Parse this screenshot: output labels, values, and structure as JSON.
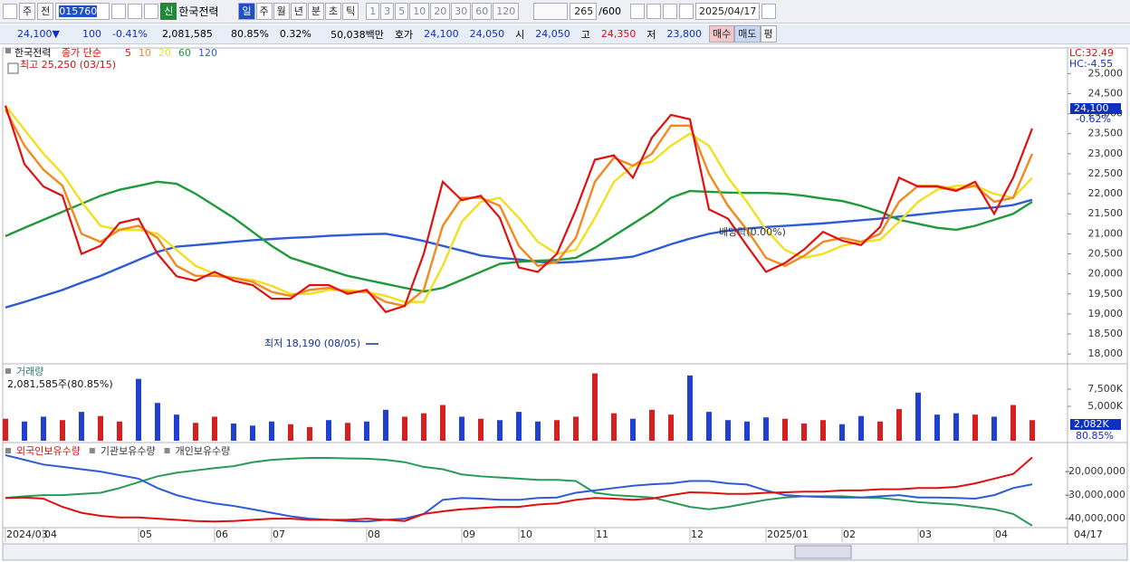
{
  "toolbar": {
    "period": "주",
    "compare": "전",
    "code": "015760",
    "name_badge": "신",
    "name": "한국전력",
    "periods": [
      "일",
      "주",
      "월",
      "년",
      "분",
      "초",
      "틱"
    ],
    "intervals": [
      "1",
      "3",
      "5",
      "10",
      "20",
      "30",
      "60",
      "120"
    ],
    "count": "265",
    "count_max": "/600",
    "date": "2025/04/17"
  },
  "quote": {
    "price": "24,100",
    "arrow": "▼",
    "change": "100",
    "change_rate": "-0.41%",
    "volume": "2,081,585",
    "volume_rate": "80.85%",
    "turnover": "0.32%",
    "amount": "50,038백만",
    "bid_label": "호가",
    "ask": "24,100",
    "bid": "24,050",
    "open_label": "시",
    "open": "24,050",
    "high_label": "고",
    "high": "24,350",
    "low_label": "저",
    "low": "23,800",
    "buy": "매수",
    "sell": "매도",
    "avg": "평"
  },
  "chart_data": [
    {
      "type": "line",
      "title": "한국전력",
      "subtitle": "종가 단순",
      "high_note": "최고 25,250 (03/15)",
      "low_note": "최저 18,190 (08/05)",
      "dividend_note": "배당락(0.00%)",
      "lc": "LC:32.49",
      "hc": "HC:-4.55",
      "last_price": "24,100",
      "last_change": "-0.62%",
      "x_end_label": "04/17",
      "categories": [
        "2024/03",
        null,
        "04",
        null,
        null,
        null,
        null,
        "05",
        null,
        null,
        null,
        "06",
        null,
        null,
        "07",
        null,
        null,
        null,
        null,
        "08",
        null,
        null,
        null,
        null,
        "09",
        null,
        null,
        "10",
        null,
        null,
        null,
        "11",
        null,
        null,
        null,
        null,
        "12",
        null,
        null,
        null,
        "2025/01",
        null,
        null,
        null,
        "02",
        null,
        null,
        null,
        "03",
        null,
        null,
        null,
        "04",
        null,
        null
      ],
      "ylim": [
        17800,
        25550
      ],
      "yticks": [
        {
          "value": 18000,
          "label": "18,000"
        },
        {
          "value": 18500,
          "label": "18,500"
        },
        {
          "value": 19000,
          "label": "19,000"
        },
        {
          "value": 19500,
          "label": "19,500"
        },
        {
          "value": 20000,
          "label": "20,000"
        },
        {
          "value": 20500,
          "label": "20,500"
        },
        {
          "value": 21000,
          "label": "21,000"
        },
        {
          "value": 21500,
          "label": "21,500"
        },
        {
          "value": 22000,
          "label": "22,000"
        },
        {
          "value": 22500,
          "label": "22,500"
        },
        {
          "value": 23000,
          "label": "23,000"
        },
        {
          "value": 23500,
          "label": "23,500"
        },
        {
          "value": 24000,
          "label": "24,000"
        },
        {
          "value": 24500,
          "label": "24,500"
        },
        {
          "value": 25000,
          "label": "25,000"
        }
      ],
      "series": [
        {
          "name": "5",
          "color": "#e01010",
          "values": [
            24200,
            22740,
            22180,
            21950,
            20500,
            20700,
            21270,
            21380,
            20500,
            19940,
            19830,
            20050,
            19830,
            19720,
            19380,
            19380,
            19720,
            19720,
            19500,
            19600,
            19050,
            19200,
            20500,
            22300,
            21840,
            21950,
            21400,
            20160,
            20050,
            20500,
            21600,
            22850,
            22960,
            22400,
            23400,
            23970,
            23860,
            21610,
            21380,
            20700,
            20050,
            20270,
            20610,
            21050,
            20830,
            20720,
            21170,
            22400,
            22180,
            22180,
            22070,
            22300,
            21500,
            22400,
            23630
          ]
        },
        {
          "name": "10",
          "color": "#f08a1c",
          "values": [
            24100,
            23200,
            22600,
            22200,
            21000,
            20800,
            21100,
            21200,
            20900,
            20200,
            19950,
            19950,
            19900,
            19800,
            19550,
            19450,
            19600,
            19650,
            19550,
            19550,
            19300,
            19200,
            19600,
            21200,
            21900,
            21900,
            21700,
            20700,
            20200,
            20300,
            20900,
            22300,
            22900,
            22700,
            23000,
            23700,
            23700,
            22500,
            21700,
            21100,
            20400,
            20200,
            20450,
            20800,
            20900,
            20800,
            21000,
            21800,
            22200,
            22200,
            22100,
            22200,
            21800,
            21900,
            23000
          ]
        },
        {
          "name": "20",
          "color": "#f0e020",
          "values": [
            24200,
            23600,
            23000,
            22500,
            21800,
            21200,
            21100,
            21100,
            21000,
            20600,
            20200,
            20000,
            19900,
            19850,
            19700,
            19500,
            19500,
            19600,
            19600,
            19550,
            19450,
            19300,
            19300,
            20200,
            21300,
            21800,
            21900,
            21400,
            20800,
            20500,
            20600,
            21400,
            22300,
            22700,
            22800,
            23200,
            23500,
            23200,
            22400,
            21800,
            21100,
            20600,
            20400,
            20500,
            20700,
            20800,
            20850,
            21300,
            21800,
            22100,
            22200,
            22200,
            22000,
            21900,
            22400
          ]
        },
        {
          "name": "60",
          "color": "#1f9a3a",
          "values": [
            20940,
            21150,
            21350,
            21550,
            21750,
            21950,
            22100,
            22200,
            22300,
            22250,
            22000,
            21700,
            21400,
            21050,
            20700,
            20400,
            20250,
            20100,
            19950,
            19850,
            19750,
            19650,
            19560,
            19650,
            19850,
            20050,
            20250,
            20300,
            20330,
            20350,
            20400,
            20650,
            20950,
            21250,
            21550,
            21900,
            22070,
            22050,
            22030,
            22020,
            22020,
            22000,
            21950,
            21880,
            21820,
            21700,
            21550,
            21350,
            21250,
            21150,
            21100,
            21200,
            21350,
            21500,
            21800
          ]
        },
        {
          "name": "120",
          "color": "#2e5bd8",
          "values": [
            19160,
            19300,
            19450,
            19600,
            19780,
            19950,
            20150,
            20350,
            20550,
            20680,
            20720,
            20760,
            20800,
            20840,
            20870,
            20900,
            20920,
            20950,
            20970,
            20990,
            21000,
            20920,
            20820,
            20700,
            20580,
            20460,
            20400,
            20360,
            20300,
            20280,
            20300,
            20340,
            20380,
            20430,
            20580,
            20740,
            20880,
            21000,
            21080,
            21130,
            21170,
            21200,
            21230,
            21260,
            21300,
            21340,
            21380,
            21430,
            21480,
            21530,
            21580,
            21620,
            21660,
            21720,
            21850
          ]
        }
      ]
    },
    {
      "type": "bar",
      "title": "거래량",
      "subtitle": "2,081,585주(80.85%)",
      "last_label": "2,082K",
      "last_rate": "80.85%",
      "ylim": [
        0,
        10800
      ],
      "yticks": [
        {
          "value": 5000,
          "label": "5,000K"
        },
        {
          "value": 7500,
          "label": "7,500K"
        }
      ],
      "values": [
        3200,
        2800,
        3500,
        3000,
        4200,
        3600,
        2800,
        9000,
        5500,
        3800,
        2600,
        3500,
        2500,
        2200,
        2800,
        2400,
        2000,
        3000,
        2600,
        2800,
        4500,
        3500,
        4000,
        5200,
        3500,
        3200,
        3000,
        4200,
        2800,
        3000,
        3500,
        9800,
        4000,
        3200,
        4500,
        3800,
        9500,
        4200,
        3000,
        2800,
        3400,
        3200,
        2500,
        3000,
        2400,
        3600,
        2800,
        4600,
        7000,
        3800,
        4000,
        3800,
        3500,
        5200,
        3000
      ],
      "colors": [
        "#d62020",
        "#2040d0",
        "#2040d0",
        "#d62020",
        "#2040d0",
        "#d62020",
        "#d62020",
        "#2040d0",
        "#2040d0",
        "#2040d0",
        "#d62020",
        "#d62020",
        "#2040d0",
        "#2040d0",
        "#2040d0",
        "#d62020",
        "#d62020",
        "#2040d0",
        "#d62020",
        "#2040d0",
        "#2040d0",
        "#d62020",
        "#d62020",
        "#d62020",
        "#2040d0",
        "#d62020",
        "#2040d0",
        "#2040d0",
        "#2040d0",
        "#d62020",
        "#d62020",
        "#d62020",
        "#d62020",
        "#2040d0",
        "#d62020",
        "#d62020",
        "#2040d0",
        "#2040d0",
        "#2040d0",
        "#2040d0",
        "#2040d0",
        "#d62020",
        "#d62020",
        "#d62020",
        "#2040d0",
        "#2040d0",
        "#d62020",
        "#d62020",
        "#2040d0",
        "#2040d0",
        "#2040d0",
        "#d62020",
        "#2040d0",
        "#d62020",
        "#d62020"
      ]
    },
    {
      "type": "line",
      "ylim": [
        -46500000,
        -8800000
      ],
      "yticks": [
        {
          "value": -20000000,
          "label": "-20,000,000"
        },
        {
          "value": -30000000,
          "label": "-30,000,000"
        },
        {
          "value": -40000000,
          "label": "-40,000,000"
        }
      ],
      "series": [
        {
          "name": "외국인보유수량",
          "color": "#e01010",
          "values": [
            -31200000,
            -31000000,
            -31500000,
            -35000000,
            -37500000,
            -38800000,
            -39500000,
            -39500000,
            -40000000,
            -40500000,
            -41000000,
            -41200000,
            -41000000,
            -40500000,
            -40000000,
            -40000000,
            -40500000,
            -40500000,
            -40500000,
            -40000000,
            -40500000,
            -41000000,
            -38000000,
            -36900000,
            -36000000,
            -35500000,
            -35000000,
            -35000000,
            -34000000,
            -33500000,
            -32000000,
            -31200000,
            -31500000,
            -32000000,
            -31500000,
            -30000000,
            -28800000,
            -29000000,
            -29500000,
            -29500000,
            -29000000,
            -28800000,
            -28500000,
            -28500000,
            -28000000,
            -28000000,
            -27500000,
            -27500000,
            -27000000,
            -27000000,
            -26500000,
            -25000000,
            -23000000,
            -21000000,
            -14000000
          ]
        },
        {
          "name": "기관보유수량",
          "color": "#2e5bd8",
          "values": [
            -13000000,
            -15000000,
            -17000000,
            -18000000,
            -19000000,
            -20000000,
            -21500000,
            -23000000,
            -27000000,
            -30000000,
            -32000000,
            -33500000,
            -34600000,
            -36000000,
            -37500000,
            -39000000,
            -40000000,
            -40500000,
            -41000000,
            -41200000,
            -40500000,
            -40000000,
            -38000000,
            -32000000,
            -31200000,
            -31500000,
            -32000000,
            -32000000,
            -31200000,
            -31000000,
            -29000000,
            -28000000,
            -27000000,
            -26000000,
            -25400000,
            -25000000,
            -24000000,
            -24000000,
            -25000000,
            -25500000,
            -28000000,
            -30000000,
            -30500000,
            -30800000,
            -31000000,
            -31000000,
            -30500000,
            -30000000,
            -31000000,
            -31000000,
            -31200000,
            -31500000,
            -30000000,
            -27000000,
            -25400000
          ]
        },
        {
          "name": "개인보유수량",
          "color": "#2a9a5a",
          "values": [
            -31200000,
            -30500000,
            -30000000,
            -30000000,
            -29500000,
            -29000000,
            -27000000,
            -24500000,
            -22000000,
            -20500000,
            -19500000,
            -18500000,
            -17700000,
            -16000000,
            -15000000,
            -14500000,
            -14200000,
            -14200000,
            -14400000,
            -14500000,
            -15000000,
            -16000000,
            -18000000,
            -19000000,
            -21200000,
            -22000000,
            -22500000,
            -23000000,
            -23500000,
            -23500000,
            -24000000,
            -29000000,
            -30000000,
            -30500000,
            -31000000,
            -33000000,
            -35000000,
            -36000000,
            -35000000,
            -33500000,
            -32000000,
            -31000000,
            -30500000,
            -30500000,
            -30500000,
            -31000000,
            -31200000,
            -32000000,
            -33000000,
            -33500000,
            -34000000,
            -35000000,
            -36000000,
            -38000000,
            -43000000
          ]
        }
      ]
    }
  ]
}
